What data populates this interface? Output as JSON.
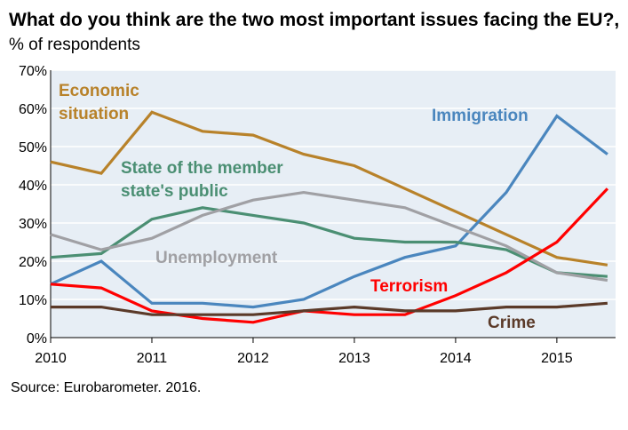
{
  "chart_data": {
    "type": "line",
    "title": "What do you think are the two most important issues facing the EU?",
    "subtitle": "% of respondents",
    "source": "Source: Eurobarometer. 2016.",
    "x": [
      2010,
      2010.5,
      2011,
      2011.5,
      2012,
      2012.5,
      2013,
      2013.5,
      2014,
      2014.5,
      2015,
      2015.5
    ],
    "xlim": [
      2010,
      2015.58
    ],
    "ylim": [
      0,
      70
    ],
    "x_ticks": [
      "2010",
      "2011",
      "2012",
      "2013",
      "2014",
      "2015"
    ],
    "x_tick_values": [
      2010,
      2011,
      2012,
      2013,
      2014,
      2015
    ],
    "y_ticks": [
      "0%",
      "10%",
      "20%",
      "30%",
      "40%",
      "50%",
      "60%",
      "70%"
    ],
    "y_tick_values": [
      0,
      10,
      20,
      30,
      40,
      50,
      60,
      70
    ],
    "grid": "horizontal",
    "series": [
      {
        "name": "Economic situation",
        "label_lines": [
          "Economic",
          "situation"
        ],
        "color": "#b8822a",
        "values": [
          46,
          43,
          59,
          54,
          53,
          48,
          45,
          39,
          33,
          27,
          21,
          19
        ]
      },
      {
        "name": "Immigration",
        "label_lines": [
          "Immigration"
        ],
        "color": "#4a86be",
        "values": [
          14,
          20,
          9,
          9,
          8,
          10,
          16,
          21,
          24,
          38,
          58,
          48
        ]
      },
      {
        "name": "State of the member state's public",
        "label_lines": [
          "State of the member",
          "state's public"
        ],
        "color": "#4b8f73",
        "values": [
          21,
          22,
          31,
          34,
          32,
          30,
          26,
          25,
          25,
          23,
          17,
          16
        ]
      },
      {
        "name": "Unemployment",
        "label_lines": [
          "Unemployment"
        ],
        "color": "#a0a0a4",
        "values": [
          27,
          23,
          26,
          32,
          36,
          38,
          36,
          34,
          29,
          24,
          17,
          15
        ]
      },
      {
        "name": "Terrorism",
        "label_lines": [
          "Terrorism"
        ],
        "color": "#ff0000",
        "values": [
          14,
          13,
          7,
          5,
          4,
          7,
          6,
          6,
          11,
          17,
          25,
          39
        ]
      },
      {
        "name": "Crime",
        "label_lines": [
          "Crime"
        ],
        "color": "#5b3a29",
        "values": [
          8,
          8,
          6,
          6,
          6,
          7,
          8,
          7,
          7,
          8,
          8,
          9
        ]
      }
    ]
  }
}
